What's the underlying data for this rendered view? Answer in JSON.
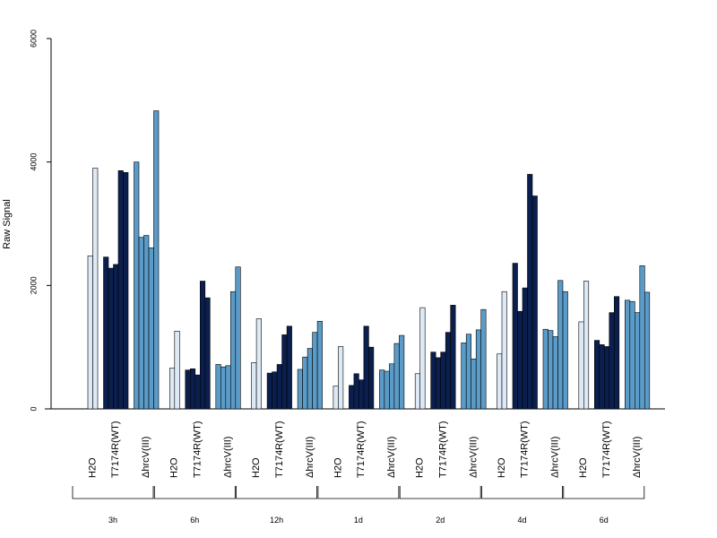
{
  "chart_data": {
    "type": "bar",
    "ylabel": "Raw Signal",
    "ylim": [
      0,
      6000
    ],
    "yticks": [
      0,
      2000,
      4000,
      6000
    ],
    "grid": false,
    "colors": {
      "H2O": "#dde9f5",
      "T7174R(WT)": "#0b1f4e",
      "ΔhrcV(III)": "#5b9bc8"
    },
    "groups": [
      {
        "time": "3h",
        "bars": [
          {
            "condition": "H2O",
            "values": [
              2480,
              3900
            ]
          },
          {
            "condition": "T7174R(WT)",
            "values": [
              2460,
              2280,
              2340,
              3860,
              3830
            ]
          },
          {
            "condition": "ΔhrcV(III)",
            "values": [
              4000,
              2780,
              2810,
              2610,
              4830
            ]
          }
        ]
      },
      {
        "time": "6h",
        "bars": [
          {
            "condition": "H2O",
            "values": [
              660,
              1260
            ]
          },
          {
            "condition": "T7174R(WT)",
            "values": [
              630,
              650,
              550,
              2070,
              1800
            ]
          },
          {
            "condition": "ΔhrcV(III)",
            "values": [
              720,
              680,
              700,
              1900,
              2300
            ]
          }
        ]
      },
      {
        "time": "12h",
        "bars": [
          {
            "condition": "H2O",
            "values": [
              750,
              1460
            ]
          },
          {
            "condition": "T7174R(WT)",
            "values": [
              580,
              600,
              720,
              1200,
              1340
            ]
          },
          {
            "condition": "ΔhrcV(III)",
            "values": [
              640,
              840,
              980,
              1240,
              1420
            ]
          }
        ]
      },
      {
        "time": "1d",
        "bars": [
          {
            "condition": "H2O",
            "values": [
              370,
              1010
            ]
          },
          {
            "condition": "T7174R(WT)",
            "values": [
              380,
              570,
              470,
              1340,
              1000
            ]
          },
          {
            "condition": "ΔhrcV(III)",
            "values": [
              630,
              610,
              730,
              1060,
              1190
            ]
          }
        ]
      },
      {
        "time": "2d",
        "bars": [
          {
            "condition": "H2O",
            "values": [
              570,
              1640
            ]
          },
          {
            "condition": "T7174R(WT)",
            "values": [
              920,
              830,
              920,
              1240,
              1680
            ]
          },
          {
            "condition": "ΔhrcV(III)",
            "values": [
              1070,
              1210,
              810,
              1280,
              1610
            ]
          }
        ]
      },
      {
        "time": "4d",
        "bars": [
          {
            "condition": "H2O",
            "values": [
              890,
              1900
            ]
          },
          {
            "condition": "T7174R(WT)",
            "values": [
              2360,
              1580,
              1960,
              3800,
              3450
            ]
          },
          {
            "condition": "ΔhrcV(III)",
            "values": [
              1290,
              1270,
              1170,
              2080,
              1900
            ]
          }
        ]
      },
      {
        "time": "6d",
        "bars": [
          {
            "condition": "H2O",
            "values": [
              1410,
              2070
            ]
          },
          {
            "condition": "T7174R(WT)",
            "values": [
              1110,
              1040,
              1010,
              1560,
              1820
            ]
          },
          {
            "condition": "ΔhrcV(III)",
            "values": [
              1760,
              1740,
              1560,
              2320,
              1890
            ]
          }
        ]
      }
    ]
  }
}
